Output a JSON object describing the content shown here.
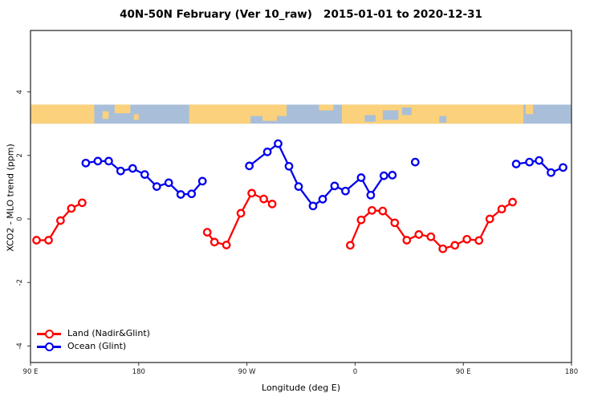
{
  "title": "40N-50N February (Ver 10_raw)   2015-01-01 to 2020-12-31",
  "axes": {
    "x_label": "Longitude (deg E)",
    "y_label": "XCO2 - MLO trend (ppm)",
    "x_ticks": [
      {
        "deg": 90,
        "label": "90 E"
      },
      {
        "deg": 180,
        "label": "180"
      },
      {
        "deg": 270,
        "label": "90 W"
      },
      {
        "deg": 360,
        "label": "0"
      },
      {
        "deg": 450,
        "label": "90 E"
      },
      {
        "deg": 540,
        "label": "180"
      }
    ],
    "y_ticks": [
      {
        "value": -4,
        "label": "-4"
      },
      {
        "value": -2,
        "label": "-2"
      },
      {
        "value": 0,
        "label": "0"
      },
      {
        "value": 2,
        "label": "2"
      },
      {
        "value": 4,
        "label": "4"
      }
    ]
  },
  "legend": [
    {
      "label": "Land (Nadir&Glint)",
      "color": "#ff0000"
    },
    {
      "label": "Ocean (Glint)",
      "color": "#0000ee"
    }
  ],
  "colors": {
    "land_series": "#ff0000",
    "ocean_series": "#0000ee",
    "map_land": "#fcd17b",
    "map_ocean": "#a9bfd9",
    "frame": "#333333",
    "tick_text": "#1a1a1a"
  },
  "chart_data": {
    "type": "line",
    "title": "40N-50N February (Ver 10_raw)   2015-01-01 to 2020-12-31",
    "xlabel": "Longitude (deg E)",
    "ylabel": "XCO2 - MLO trend (ppm)",
    "x_axis_note": "wrapped longitude axis, degrees run 90E(90) -> 180 -> 90W(270) -> 0(360) -> 90E(450) -> 180(540)",
    "xlim": [
      90,
      540
    ],
    "ylim": [
      -4.5,
      5.9
    ],
    "grid": false,
    "legend_position": "bottom-left",
    "marker": "open-circle",
    "series": [
      {
        "name": "Land (Nadir&Glint)",
        "color": "#ff0000",
        "segments": [
          [
            [
              95,
              -0.67
            ],
            [
              105,
              -0.67
            ],
            [
              115,
              -0.05
            ],
            [
              124,
              0.33
            ],
            [
              133,
              0.51
            ]
          ],
          [
            [
              237,
              -0.42
            ],
            [
              243,
              -0.73
            ],
            [
              253,
              -0.82
            ],
            [
              265,
              0.18
            ],
            [
              274,
              0.81
            ],
            [
              284,
              0.63
            ],
            [
              291,
              0.47
            ]
          ],
          [
            [
              356,
              -0.83
            ],
            [
              365,
              -0.03
            ],
            [
              374,
              0.27
            ],
            [
              383,
              0.25
            ],
            [
              393,
              -0.12
            ],
            [
              403,
              -0.67
            ],
            [
              413,
              -0.49
            ],
            [
              423,
              -0.56
            ],
            [
              433,
              -0.94
            ],
            [
              443,
              -0.83
            ],
            [
              453,
              -0.64
            ],
            [
              463,
              -0.68
            ],
            [
              472,
              0.0
            ],
            [
              482,
              0.31
            ],
            [
              491,
              0.53
            ]
          ]
        ]
      },
      {
        "name": "Ocean (Glint)",
        "color": "#0000ee",
        "segments": [
          [
            [
              136,
              1.76
            ],
            [
              146,
              1.82
            ],
            [
              155,
              1.82
            ],
            [
              165,
              1.51
            ],
            [
              175,
              1.59
            ],
            [
              185,
              1.4
            ],
            [
              195,
              1.02
            ],
            [
              205,
              1.14
            ],
            [
              215,
              0.77
            ],
            [
              224,
              0.79
            ],
            [
              233,
              1.19
            ]
          ],
          [
            [
              272,
              1.67
            ],
            [
              287,
              2.11
            ],
            [
              296,
              2.37
            ],
            [
              305,
              1.66
            ],
            [
              313,
              1.02
            ],
            [
              325,
              0.41
            ],
            [
              333,
              0.62
            ],
            [
              343,
              1.04
            ],
            [
              352,
              0.88
            ],
            [
              365,
              1.3
            ],
            [
              373,
              0.75
            ],
            [
              384,
              1.36
            ],
            [
              391,
              1.38
            ]
          ],
          [
            [
              410,
              1.79
            ]
          ],
          [
            [
              494,
              1.73
            ],
            [
              505,
              1.79
            ],
            [
              513,
              1.84
            ],
            [
              523,
              1.46
            ],
            [
              533,
              1.62
            ]
          ]
        ]
      }
    ],
    "map_strip": {
      "description": "world coastline band drawn across plot near top",
      "value_top": 3.6,
      "value_bottom": 3.0,
      "ocean_color": "#a9bfd9",
      "land_color": "#fcd17b",
      "land_patches": [
        {
          "from": 90,
          "to": 143,
          "top": 0,
          "bot": 1
        },
        {
          "from": 150,
          "to": 155,
          "top": 0.35,
          "bot": 0.75
        },
        {
          "from": 160,
          "to": 173,
          "top": 0,
          "bot": 0.45
        },
        {
          "from": 176,
          "to": 180,
          "top": 0.5,
          "bot": 0.8
        },
        {
          "from": 222,
          "to": 273,
          "top": 0,
          "bot": 1
        },
        {
          "from": 273,
          "to": 303,
          "top": 0,
          "bot": 0.6
        },
        {
          "from": 283,
          "to": 295,
          "top": 0.6,
          "bot": 0.85
        },
        {
          "from": 330,
          "to": 342,
          "top": 0,
          "bot": 0.3
        },
        {
          "from": 349,
          "to": 500,
          "top": 0,
          "bot": 1
        },
        {
          "from": 502,
          "to": 508,
          "top": 0,
          "bot": 0.5
        }
      ],
      "sea_patches": [
        {
          "from": 368,
          "to": 377,
          "top": 0.55,
          "bot": 0.9
        },
        {
          "from": 383,
          "to": 396,
          "top": 0.3,
          "bot": 0.8
        },
        {
          "from": 399,
          "to": 407,
          "top": 0.15,
          "bot": 0.55
        },
        {
          "from": 430,
          "to": 436,
          "top": 0.6,
          "bot": 0.95
        }
      ]
    }
  }
}
